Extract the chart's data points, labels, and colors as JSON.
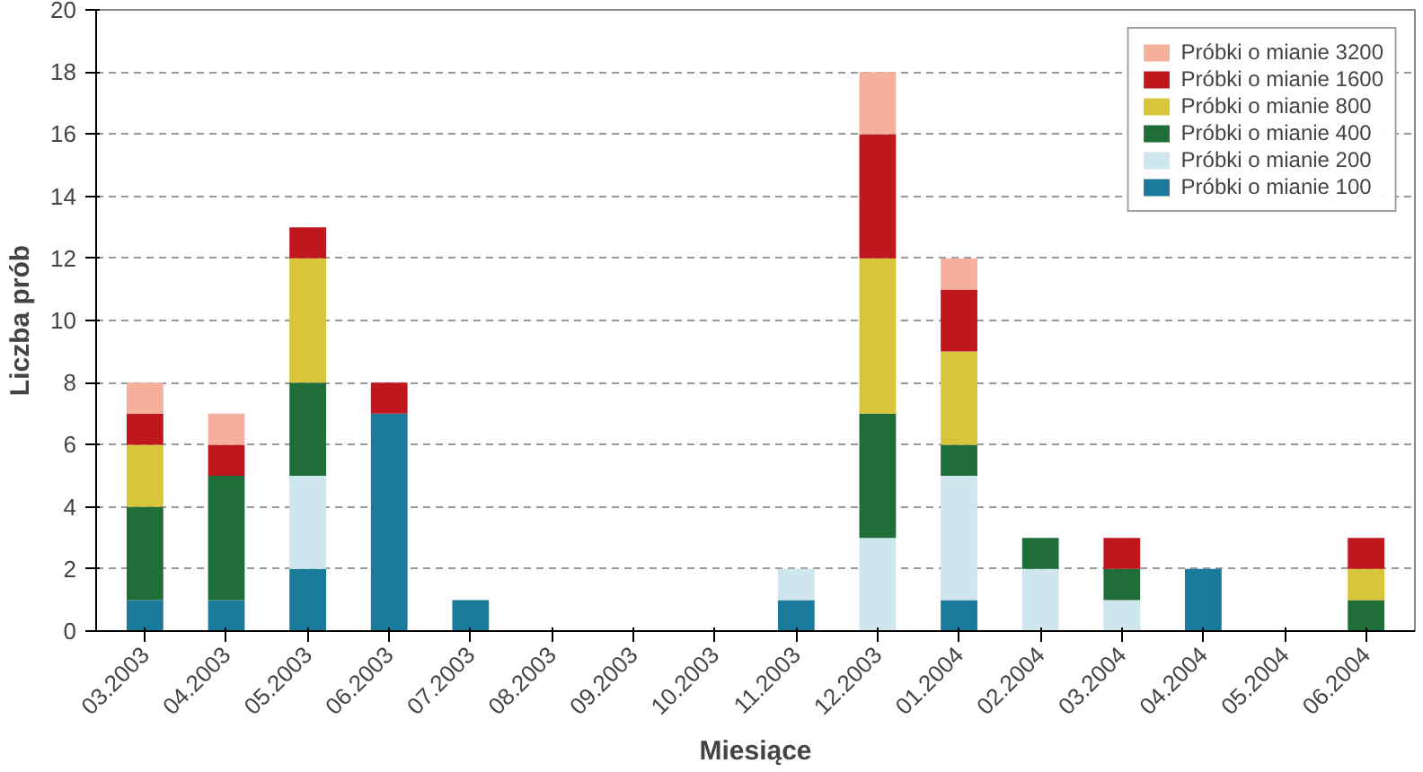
{
  "chart_data": {
    "type": "bar",
    "stacked": true,
    "xlabel": "Miesiące",
    "ylabel": "Liczba prób",
    "categories": [
      "03.2003",
      "04.2003",
      "05.2003",
      "06.2003",
      "07.2003",
      "08.2003",
      "09.2003",
      "10.2003",
      "11.2003",
      "12.2003",
      "01.2004",
      "02.2004",
      "03.2004",
      "04.2004",
      "05.2004",
      "06.2004"
    ],
    "series": [
      {
        "name": "Próbki o mianie 100",
        "color": "#1a7a9a",
        "values": [
          1,
          1,
          2,
          7,
          1,
          0,
          0,
          0,
          1,
          0,
          1,
          0,
          0,
          2,
          0,
          0
        ]
      },
      {
        "name": "Próbki o mianie 200",
        "color": "#cfe6ef",
        "values": [
          0,
          0,
          3,
          0,
          0,
          0,
          0,
          0,
          1,
          3,
          4,
          2,
          1,
          0,
          0,
          0
        ]
      },
      {
        "name": "Próbki o mianie 400",
        "color": "#1f6e3a",
        "values": [
          3,
          4,
          3,
          0,
          0,
          0,
          0,
          0,
          0,
          4,
          1,
          1,
          1,
          0,
          0,
          1
        ]
      },
      {
        "name": "Próbki o mianie 800",
        "color": "#d8c53a",
        "values": [
          2,
          0,
          4,
          0,
          0,
          0,
          0,
          0,
          0,
          5,
          3,
          0,
          0,
          0,
          0,
          1
        ]
      },
      {
        "name": "Próbki o mianie 1600",
        "color": "#c0161e",
        "values": [
          1,
          1,
          1,
          1,
          0,
          0,
          0,
          0,
          0,
          4,
          2,
          0,
          1,
          0,
          0,
          1
        ]
      },
      {
        "name": "Próbki o mianie 3200",
        "color": "#f4b09a",
        "values": [
          1,
          1,
          0,
          0,
          0,
          0,
          0,
          0,
          0,
          2,
          1,
          0,
          0,
          0,
          0,
          0
        ]
      }
    ],
    "ylim": [
      0,
      20
    ],
    "yticks": [
      0,
      2,
      4,
      6,
      8,
      10,
      12,
      14,
      16,
      18,
      20
    ],
    "grid": "y",
    "legend": "top right"
  }
}
